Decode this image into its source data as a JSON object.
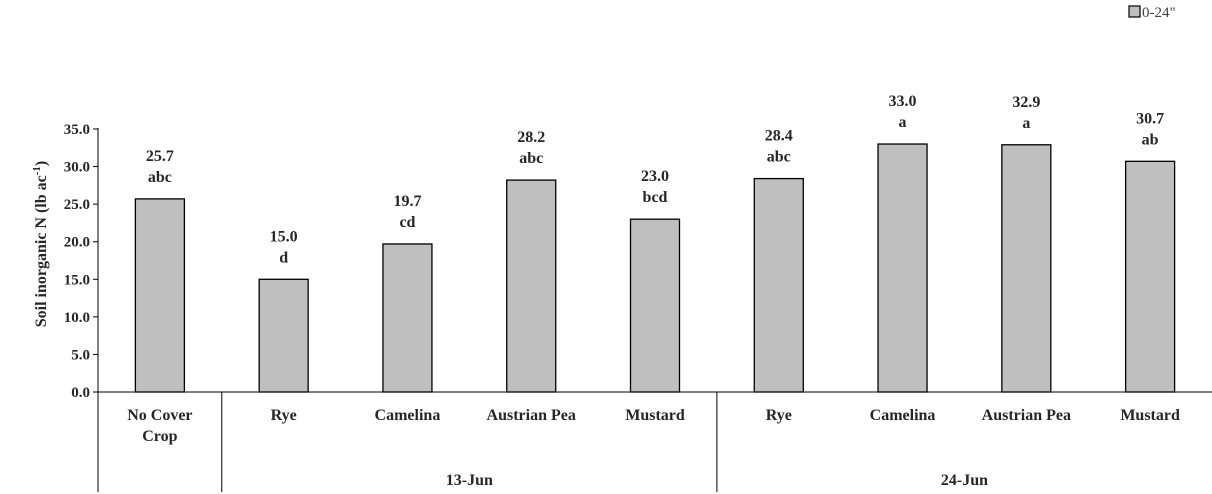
{
  "chart_data": {
    "type": "bar",
    "categories": [
      [
        "No Cover",
        "Crop"
      ],
      [
        "Rye"
      ],
      [
        "Camelina"
      ],
      [
        "Austrian Pea"
      ],
      [
        "Mustard"
      ],
      [
        "Rye"
      ],
      [
        "Camelina"
      ],
      [
        "Austrian Pea"
      ],
      [
        "Mustard"
      ]
    ],
    "groups": [
      {
        "label": "",
        "span": [
          0,
          0
        ]
      },
      {
        "label": "13-Jun",
        "span": [
          1,
          4
        ]
      },
      {
        "label": "24-Jun",
        "span": [
          5,
          8
        ]
      }
    ],
    "series": [
      {
        "name": "0-24\"",
        "color": "#bfbfbf",
        "values": [
          25.7,
          15.0,
          19.7,
          28.2,
          23.0,
          28.4,
          33.0,
          32.9,
          30.7
        ]
      }
    ],
    "value_labels": [
      "25.7",
      "15.0",
      "19.7",
      "28.2",
      "23.0",
      "28.4",
      "33.0",
      "32.9",
      "30.7"
    ],
    "letter_labels": [
      "abc",
      "d",
      "cd",
      "abc",
      "bcd",
      "abc",
      "a",
      "a",
      "ab"
    ],
    "ylabel": {
      "main": "Soil inorganic N (lb ac",
      "sup": "-1",
      "close": ")"
    },
    "ylim": [
      0,
      35
    ],
    "yticks": [
      "0.0",
      "5.0",
      "10.0",
      "15.0",
      "20.0",
      "25.0",
      "30.0",
      "35.0"
    ],
    "grid": false,
    "legend_position": "top-right"
  }
}
